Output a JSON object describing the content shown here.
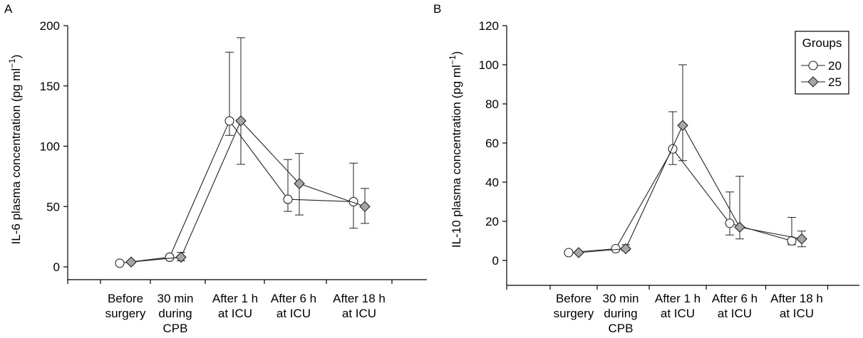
{
  "colors": {
    "axis": "#000000",
    "line": "#222222",
    "marker_20": "#ffffff",
    "marker_25": "#a6a6a6"
  },
  "chart_data": [
    {
      "type": "line",
      "panel_label": "A",
      "title": "",
      "xlabel": "",
      "ylabel": "IL-6 plasma concentration (pg ml⁻¹)",
      "ylabel_main": "IL-6 plasma concentration (pg ml",
      "ylabel_sup": "−1",
      "ylabel_close": ")",
      "ylim": [
        0,
        200
      ],
      "yticks": [
        "0",
        "50",
        "100",
        "150",
        "200"
      ],
      "categories": [
        [
          "Before",
          "surgery"
        ],
        [
          "30 min",
          "during",
          "CPB"
        ],
        [
          "After 1 h",
          "at ICU"
        ],
        [
          "After 6 h",
          "at ICU"
        ],
        [
          "After 18 h",
          "at ICU"
        ]
      ],
      "legend": null,
      "series": [
        {
          "name": "20",
          "marker": "circle",
          "values": [
            3,
            8,
            121,
            56,
            54
          ],
          "err_low": [
            3,
            8,
            109,
            46,
            32
          ],
          "err_high": [
            3,
            9,
            178,
            89,
            86
          ]
        },
        {
          "name": "25",
          "marker": "diamond",
          "values": [
            4,
            8,
            121,
            69,
            50
          ],
          "err_low": [
            4,
            5,
            85,
            43,
            36
          ],
          "err_high": [
            4,
            12,
            190,
            94,
            65
          ]
        }
      ]
    },
    {
      "type": "line",
      "panel_label": "B",
      "title": "",
      "xlabel": "",
      "ylabel": "IL-10 plasma concentration (pg ml⁻¹)",
      "ylabel_main": "IL-10 plasma concentration (pg ml",
      "ylabel_sup": "−1",
      "ylabel_close": ")",
      "ylim": [
        0,
        120
      ],
      "yticks": [
        "0",
        "20",
        "40",
        "60",
        "80",
        "100",
        "120"
      ],
      "categories": [
        [
          "Before",
          "surgery"
        ],
        [
          "30 min",
          "during",
          "CPB"
        ],
        [
          "After 1 h",
          "at ICU"
        ],
        [
          "After 6 h",
          "at ICU"
        ],
        [
          "After 18 h",
          "at ICU"
        ]
      ],
      "legend": {
        "title": "Groups",
        "placement": "top-right"
      },
      "series": [
        {
          "name": "20",
          "marker": "circle",
          "values": [
            4,
            6,
            57,
            19,
            10
          ],
          "err_low": [
            4,
            6,
            49,
            13,
            8
          ],
          "err_high": [
            4,
            6,
            76,
            35,
            22
          ]
        },
        {
          "name": "25",
          "marker": "diamond",
          "values": [
            4,
            6,
            69,
            17,
            11
          ],
          "err_low": [
            4,
            5,
            51,
            11,
            7
          ],
          "err_high": [
            4,
            8,
            100,
            43,
            15
          ]
        }
      ]
    }
  ]
}
